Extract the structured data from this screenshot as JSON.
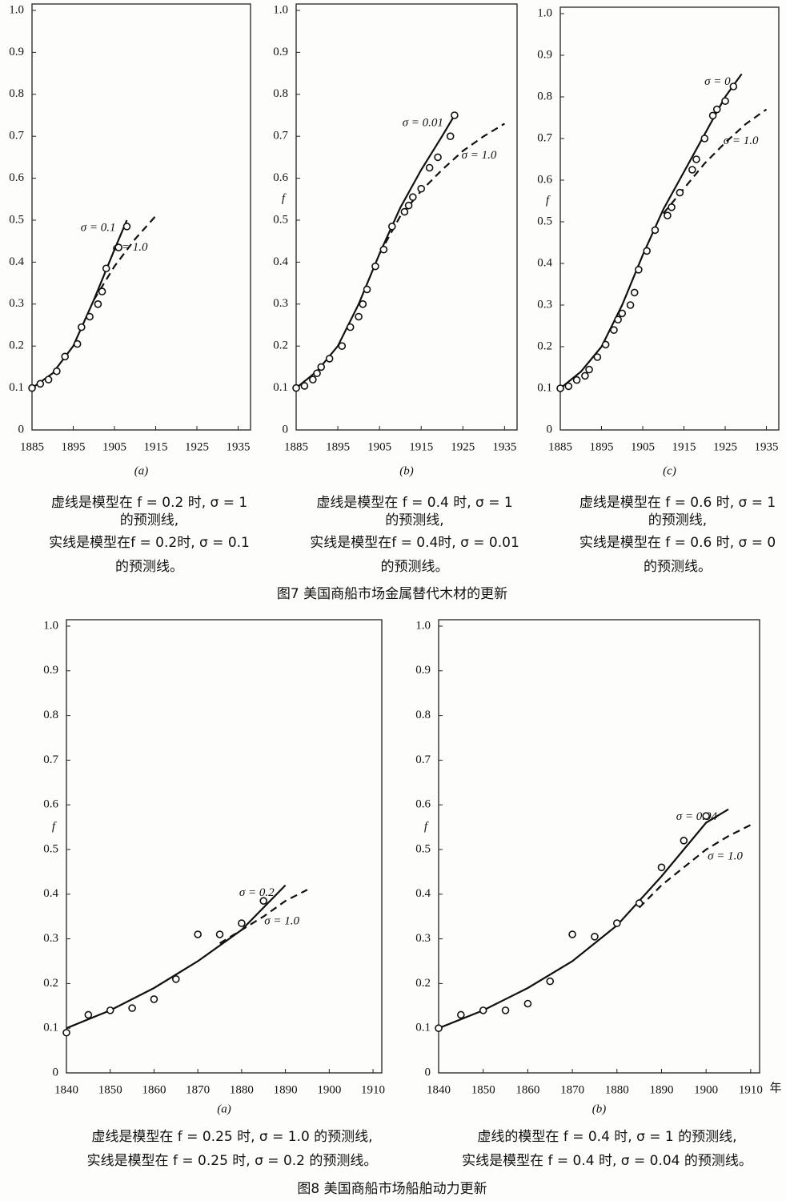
{
  "figures": [
    {
      "title": "图7  美国商船市场金属替代木材的更新"
    },
    {
      "title": "图8  美国商船市场船舶动力更新"
    }
  ],
  "chart_data": [
    {
      "type": "scatter",
      "panel": "(a)",
      "xlim": [
        1885,
        1938
      ],
      "ylim": [
        0,
        1
      ],
      "xticks": [
        1885,
        1895,
        1905,
        1915,
        1925,
        1935
      ],
      "yticks": [
        0,
        0.1,
        0.2,
        0.3,
        0.4,
        0.5,
        0.6,
        0.7,
        0.8,
        0.9,
        {
          "value": 1,
          "label": "1.0"
        }
      ],
      "points": {
        "x": [
          1885,
          1887,
          1889,
          1891,
          1893,
          1896,
          1897,
          1899,
          1901,
          1902,
          1903,
          1906,
          1908
        ],
        "y": [
          0.1,
          0.11,
          0.12,
          0.14,
          0.175,
          0.205,
          0.245,
          0.27,
          0.3,
          0.33,
          0.385,
          0.435,
          0.485
        ]
      },
      "lines": [
        {
          "style": "solid",
          "label": "σ = 0.1",
          "x": [
            1885,
            1890,
            1895,
            1900,
            1905,
            1908
          ],
          "y": [
            0.1,
            0.135,
            0.2,
            0.31,
            0.43,
            0.5
          ]
        },
        {
          "style": "dashed",
          "label": "σ = 1.0",
          "x": [
            1900,
            1905,
            1910,
            1915
          ],
          "y": [
            0.31,
            0.39,
            0.455,
            0.51
          ]
        }
      ],
      "caption": [
        "虚线是模型在 f = 0.2 时, σ = 1",
        "的预测线,",
        "实线是模型在f = 0.2时, σ = 0.1",
        "的预测线。"
      ]
    },
    {
      "type": "scatter",
      "panel": "(b)",
      "ylabel": "f",
      "xlim": [
        1885,
        1938
      ],
      "ylim": [
        0,
        1
      ],
      "xticks": [
        1885,
        1895,
        1905,
        1915,
        1925,
        1935
      ],
      "yticks": [
        0,
        0.1,
        0.2,
        0.3,
        0.4,
        0.5,
        0.6,
        0.7,
        0.8,
        0.9,
        {
          "value": 1,
          "label": "1.0"
        }
      ],
      "points": {
        "x": [
          1885,
          1887,
          1889,
          1890,
          1891,
          1893,
          1896,
          1898,
          1900,
          1901,
          1902,
          1904,
          1906,
          1908,
          1911,
          1912,
          1913,
          1915,
          1917,
          1919,
          1922,
          1923
        ],
        "y": [
          0.1,
          0.105,
          0.12,
          0.135,
          0.15,
          0.17,
          0.2,
          0.245,
          0.27,
          0.3,
          0.335,
          0.39,
          0.43,
          0.485,
          0.52,
          0.535,
          0.555,
          0.575,
          0.625,
          0.65,
          0.7,
          0.75
        ]
      },
      "lines": [
        {
          "style": "solid",
          "label": "σ = 0.01",
          "x": [
            1885,
            1890,
            1895,
            1900,
            1905,
            1910,
            1915,
            1920,
            1923
          ],
          "y": [
            0.1,
            0.14,
            0.2,
            0.3,
            0.42,
            0.53,
            0.62,
            0.7,
            0.75
          ]
        },
        {
          "style": "dashed",
          "label": "σ = 1.0",
          "x": [
            1905,
            1910,
            1915,
            1920,
            1925,
            1930,
            1935
          ],
          "y": [
            0.42,
            0.51,
            0.57,
            0.62,
            0.665,
            0.7,
            0.73
          ]
        }
      ],
      "caption": [
        "虚线是模型在 f = 0.4 时, σ = 1",
        "的预测线,",
        "实线是模型在f = 0.4时, σ = 0.01",
        "的预测线。"
      ]
    },
    {
      "type": "scatter",
      "panel": "(c)",
      "ylabel": "f",
      "xlim": [
        1885,
        1938
      ],
      "ylim": [
        0,
        1
      ],
      "xticks": [
        1885,
        1895,
        1905,
        1915,
        1925,
        1935
      ],
      "yticks": [
        0,
        0.1,
        0.2,
        0.3,
        0.4,
        0.5,
        0.6,
        0.7,
        0.8,
        0.9,
        {
          "value": 1,
          "label": "1.0"
        }
      ],
      "points": {
        "x": [
          1885,
          1887,
          1889,
          1891,
          1892,
          1894,
          1896,
          1898,
          1899,
          1900,
          1902,
          1903,
          1904,
          1906,
          1908,
          1911,
          1912,
          1914,
          1917,
          1918,
          1920,
          1922,
          1923,
          1925,
          1927
        ],
        "y": [
          0.1,
          0.105,
          0.12,
          0.13,
          0.145,
          0.175,
          0.205,
          0.24,
          0.265,
          0.28,
          0.3,
          0.33,
          0.385,
          0.43,
          0.48,
          0.515,
          0.535,
          0.57,
          0.625,
          0.65,
          0.7,
          0.755,
          0.77,
          0.79,
          0.825
        ]
      },
      "lines": [
        {
          "style": "solid",
          "label": "σ = 0",
          "x": [
            1885,
            1890,
            1895,
            1900,
            1905,
            1910,
            1915,
            1920,
            1925,
            1929
          ],
          "y": [
            0.1,
            0.14,
            0.2,
            0.3,
            0.42,
            0.53,
            0.62,
            0.71,
            0.8,
            0.855
          ]
        },
        {
          "style": "dashed",
          "label": "σ = 1.0",
          "x": [
            1910,
            1915,
            1920,
            1925,
            1930,
            1935
          ],
          "y": [
            0.52,
            0.58,
            0.64,
            0.69,
            0.735,
            0.77
          ]
        }
      ],
      "caption": [
        "虚线是模型在 f = 0.6 时, σ = 1",
        "的预测线,",
        "实线是模型在 f = 0.6 时, σ = 0",
        "的预测线。"
      ]
    },
    {
      "type": "scatter",
      "panel": "(a)",
      "ylabel": "f",
      "xlim": [
        1840,
        1912
      ],
      "ylim": [
        0,
        1
      ],
      "xticks": [
        1840,
        1850,
        1860,
        1870,
        1880,
        1890,
        1900,
        1910
      ],
      "yticks": [
        0,
        0.1,
        0.2,
        0.3,
        0.4,
        0.5,
        0.6,
        0.7,
        0.8,
        0.9,
        {
          "value": 1,
          "label": "1.0"
        }
      ],
      "points": {
        "x": [
          1840,
          1845,
          1850,
          1855,
          1860,
          1865,
          1870,
          1875,
          1880,
          1885
        ],
        "y": [
          0.09,
          0.13,
          0.14,
          0.145,
          0.165,
          0.21,
          0.31,
          0.31,
          0.335,
          0.385
        ]
      },
      "lines": [
        {
          "style": "solid",
          "label": "σ = 0.2",
          "x": [
            1840,
            1850,
            1860,
            1870,
            1880,
            1890
          ],
          "y": [
            0.1,
            0.14,
            0.19,
            0.25,
            0.32,
            0.42
          ]
        },
        {
          "style": "dashed",
          "label": "σ = 1.0",
          "x": [
            1875,
            1880,
            1885,
            1890,
            1895
          ],
          "y": [
            0.29,
            0.32,
            0.35,
            0.385,
            0.41
          ]
        }
      ],
      "caption": [
        "虚线是模型在 f = 0.25 时, σ = 1.0 的预测线,",
        "实线是模型在 f = 0.25 时, σ = 0.2 的预测线。"
      ]
    },
    {
      "type": "scatter",
      "panel": "(b)",
      "ylabel": "f",
      "xunit": "年",
      "xlim": [
        1840,
        1912
      ],
      "ylim": [
        0,
        1
      ],
      "xticks": [
        1840,
        1850,
        1860,
        1870,
        1880,
        1890,
        1900,
        1910
      ],
      "yticks": [
        0,
        0.1,
        0.2,
        0.3,
        0.4,
        0.5,
        0.6,
        0.7,
        0.8,
        0.9,
        {
          "value": 1,
          "label": "1.0"
        }
      ],
      "points": {
        "x": [
          1840,
          1845,
          1850,
          1855,
          1860,
          1865,
          1870,
          1875,
          1880,
          1885,
          1890,
          1895,
          1900
        ],
        "y": [
          0.1,
          0.13,
          0.14,
          0.14,
          0.155,
          0.205,
          0.31,
          0.305,
          0.335,
          0.38,
          0.46,
          0.52,
          0.575
        ]
      },
      "lines": [
        {
          "style": "solid",
          "label": "σ = 0.04",
          "x": [
            1840,
            1850,
            1860,
            1870,
            1880,
            1890,
            1900,
            1905
          ],
          "y": [
            0.1,
            0.14,
            0.19,
            0.25,
            0.33,
            0.44,
            0.56,
            0.59
          ]
        },
        {
          "style": "dashed",
          "label": "σ = 1.0",
          "x": [
            1885,
            1890,
            1895,
            1900,
            1905,
            1910
          ],
          "y": [
            0.37,
            0.42,
            0.46,
            0.5,
            0.53,
            0.555
          ]
        }
      ],
      "caption": [
        "虚线的模型在 f = 0.4 时, σ = 1 的预测线,",
        "实线是模型在 f = 0.4 时, σ = 0.04 的预测线。"
      ]
    }
  ]
}
